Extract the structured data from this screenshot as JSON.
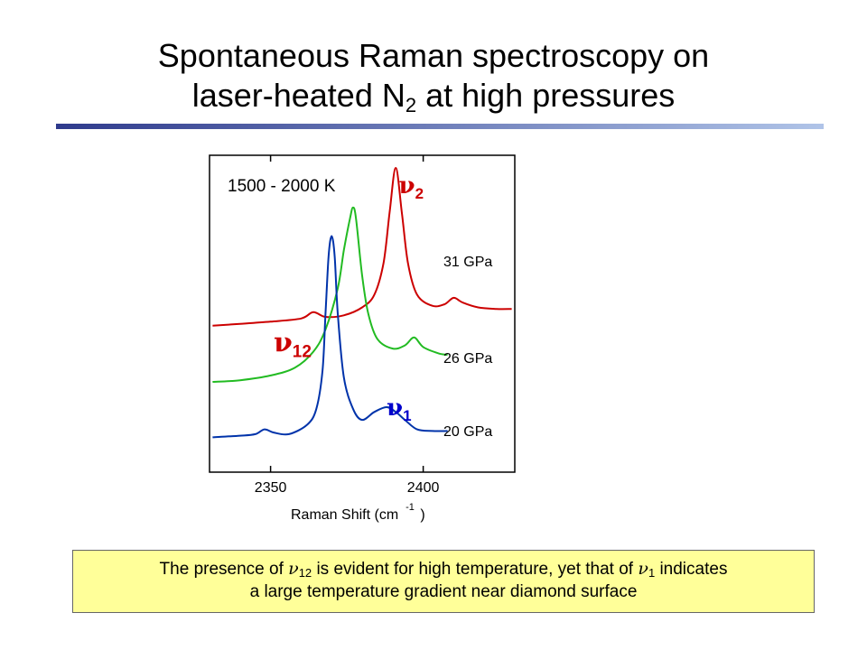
{
  "slide": {
    "title_line1": "Spontaneous Raman spectroscopy on",
    "title_line2_before": "laser-heated N",
    "title_line2_sub": "2",
    "title_line2_after": " at high pressures",
    "rule_colors": [
      "#2e3a8c",
      "#b0c4e8"
    ]
  },
  "caption": {
    "part1": "The presence of ",
    "nu": "ν",
    "sub12": "12",
    "part2": " is evident for high temperature, yet that of ",
    "sub1": "1",
    "part3": " indicates",
    "line2": "a large temperature gradient near diamond surface",
    "background": "#ffff99"
  },
  "chart_data": {
    "type": "line",
    "xlabel": "Raman Shift (cm",
    "xlabel_sup": "-1",
    "xlabel_close": " )",
    "xlim": [
      2330,
      2430
    ],
    "ylim": [
      0,
      1
    ],
    "xticks": [
      2350,
      2400
    ],
    "tick_labels": [
      "2350",
      "2400"
    ],
    "annotation_temperature": "1500 - 2000 K",
    "peak_labels": [
      {
        "symbol": "ν",
        "sub": "2",
        "color": "#cc0000",
        "x": 2392,
        "y": 0.88
      },
      {
        "symbol": "ν",
        "sub": "12",
        "color": "#cc0000",
        "x": 2351,
        "y": 0.38
      },
      {
        "symbol": "ν",
        "sub": "1",
        "color": "#0000cc",
        "x": 2388,
        "y": 0.18
      }
    ],
    "series": [
      {
        "name": "31 GPa",
        "color": "#cc0000",
        "points": [
          [
            2331,
            0.462
          ],
          [
            2340,
            0.468
          ],
          [
            2350,
            0.475
          ],
          [
            2360,
            0.485
          ],
          [
            2364,
            0.505
          ],
          [
            2368,
            0.49
          ],
          [
            2374,
            0.495
          ],
          [
            2380,
            0.52
          ],
          [
            2384,
            0.56
          ],
          [
            2387,
            0.66
          ],
          [
            2389,
            0.82
          ],
          [
            2391,
            0.96
          ],
          [
            2393,
            0.82
          ],
          [
            2395,
            0.66
          ],
          [
            2398,
            0.56
          ],
          [
            2403,
            0.525
          ],
          [
            2407,
            0.53
          ],
          [
            2410,
            0.55
          ],
          [
            2413,
            0.535
          ],
          [
            2418,
            0.52
          ],
          [
            2424,
            0.515
          ],
          [
            2429,
            0.515
          ]
        ]
      },
      {
        "name": "26 GPa",
        "color": "#22bb22",
        "points": [
          [
            2331,
            0.285
          ],
          [
            2340,
            0.29
          ],
          [
            2350,
            0.305
          ],
          [
            2358,
            0.33
          ],
          [
            2364,
            0.38
          ],
          [
            2368,
            0.45
          ],
          [
            2372,
            0.58
          ],
          [
            2374,
            0.7
          ],
          [
            2376,
            0.8
          ],
          [
            2377,
            0.835
          ],
          [
            2378,
            0.8
          ],
          [
            2380,
            0.62
          ],
          [
            2382,
            0.5
          ],
          [
            2385,
            0.42
          ],
          [
            2390,
            0.39
          ],
          [
            2394,
            0.4
          ],
          [
            2397,
            0.425
          ],
          [
            2400,
            0.395
          ],
          [
            2405,
            0.375
          ],
          [
            2408,
            0.37
          ]
        ]
      },
      {
        "name": "20 GPa",
        "color": "#0033aa",
        "points": [
          [
            2331,
            0.11
          ],
          [
            2340,
            0.115
          ],
          [
            2345,
            0.12
          ],
          [
            2348,
            0.135
          ],
          [
            2351,
            0.125
          ],
          [
            2356,
            0.12
          ],
          [
            2362,
            0.15
          ],
          [
            2365,
            0.2
          ],
          [
            2367,
            0.32
          ],
          [
            2368,
            0.5
          ],
          [
            2369,
            0.68
          ],
          [
            2370,
            0.745
          ],
          [
            2371,
            0.68
          ],
          [
            2372,
            0.5
          ],
          [
            2374,
            0.3
          ],
          [
            2377,
            0.2
          ],
          [
            2380,
            0.165
          ],
          [
            2384,
            0.19
          ],
          [
            2388,
            0.205
          ],
          [
            2391,
            0.19
          ],
          [
            2394,
            0.165
          ],
          [
            2398,
            0.135
          ],
          [
            2403,
            0.13
          ],
          [
            2408,
            0.13
          ]
        ]
      }
    ]
  }
}
